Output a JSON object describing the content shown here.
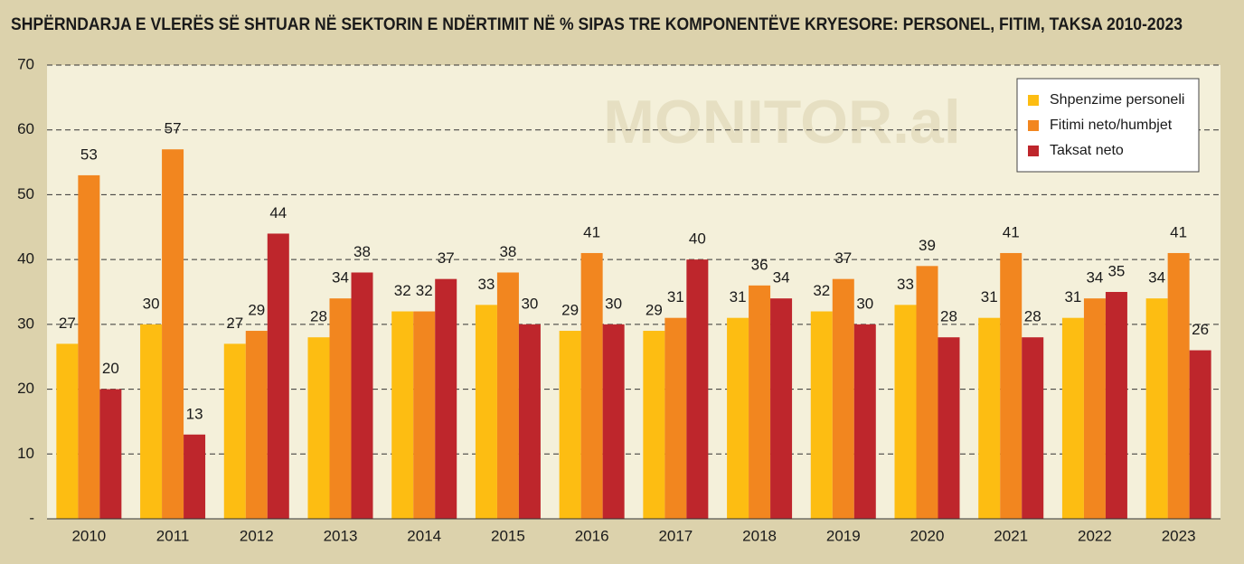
{
  "chart_data": {
    "type": "bar",
    "title": "SHPËRNDARJA E VLERËS SË SHTUAR NË SEKTORIN E NDËRTIMIT NË % SIPAS TRE KOMPONENTËVE KRYESORE: PERSONEL, FITIM, TAKSA 2010-2023",
    "watermark": "MONITOR.al",
    "categories": [
      "2010",
      "2011",
      "2012",
      "2013",
      "2014",
      "2015",
      "2016",
      "2017",
      "2018",
      "2019",
      "2020",
      "2021",
      "2022",
      "2023"
    ],
    "series": [
      {
        "name": "Shpenzime personeli",
        "color": "#fdbd12",
        "values": [
          27,
          30,
          27,
          28,
          32,
          33,
          29,
          29,
          31,
          32,
          33,
          31,
          31,
          34
        ]
      },
      {
        "name": "Fitimi neto/humbjet",
        "color": "#f2861f",
        "values": [
          53,
          57,
          29,
          34,
          32,
          38,
          41,
          31,
          36,
          37,
          39,
          41,
          34,
          41
        ]
      },
      {
        "name": "Taksat neto",
        "color": "#be262c",
        "values": [
          20,
          13,
          44,
          38,
          37,
          30,
          30,
          40,
          34,
          30,
          28,
          28,
          35,
          26
        ]
      }
    ],
    "ylim": [
      0,
      70
    ],
    "yticks": [
      {
        "value": 0,
        "label": "-"
      },
      10,
      20,
      30,
      40,
      50,
      60,
      70
    ],
    "grid": true,
    "legend": "upper right"
  }
}
